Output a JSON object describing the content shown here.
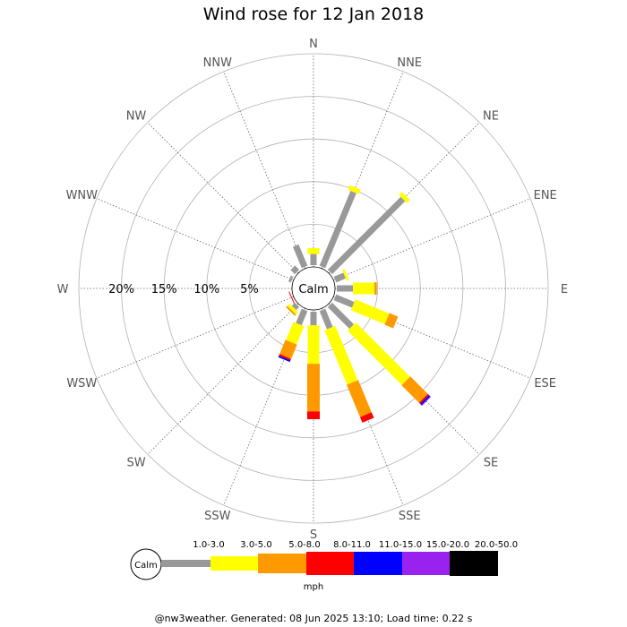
{
  "chart_data": {
    "type": "wind-rose",
    "title": "Wind rose for 12 Jan 2018",
    "directions": [
      "N",
      "NNE",
      "NE",
      "ENE",
      "E",
      "ESE",
      "SE",
      "SSE",
      "S",
      "SSW",
      "SW",
      "WSW",
      "W",
      "WNW",
      "NW",
      "NNW"
    ],
    "radial_ticks": [
      "5%",
      "10%",
      "15%",
      "20%"
    ],
    "radial_max": 25,
    "calm_label": "Calm",
    "units": "mph",
    "speed_bins": [
      {
        "label": "1.0-3.0",
        "color": "#999999"
      },
      {
        "label": "3.0-5.0",
        "color": "#ffff00"
      },
      {
        "label": "5.0-8.0",
        "color": "#ff9900"
      },
      {
        "label": "8.0-11.0",
        "color": "#ff0000"
      },
      {
        "label": "11.0-15.0",
        "color": "#0000ff"
      },
      {
        "label": "15.0-20.0",
        "color": "#9922ee"
      },
      {
        "label": "20.0-50.0",
        "color": "#000000"
      }
    ],
    "values": {
      "N": [
        1.3,
        0.7,
        0,
        0,
        0,
        0,
        0
      ],
      "NNE": [
        9.5,
        0.6,
        0,
        0,
        0,
        0,
        0
      ],
      "NE": [
        12.1,
        0.5,
        0,
        0,
        0,
        0,
        0
      ],
      "ENE": [
        1.2,
        0.3,
        0,
        0,
        0,
        0,
        0
      ],
      "E": [
        1.9,
        2.5,
        0.3,
        0,
        0,
        0,
        0
      ],
      "ESE": [
        2.3,
        4.3,
        1.1,
        0,
        0,
        0,
        0
      ],
      "SE": [
        3.6,
        9.0,
        2.9,
        0.2,
        0.2,
        0.1,
        0
      ],
      "SSE": [
        2.3,
        6.9,
        4.1,
        0.7,
        0,
        0,
        0
      ],
      "S": [
        1.6,
        4.5,
        5.6,
        0.9,
        0,
        0,
        0
      ],
      "SSW": [
        1.8,
        2.3,
        1.8,
        0.2,
        0.2,
        0,
        0
      ],
      "SW": [
        0.5,
        0.4,
        0.2,
        0,
        0,
        0,
        0
      ],
      "WSW": [
        0,
        0,
        0,
        0.1,
        0,
        0,
        0
      ],
      "W": [
        0,
        0,
        0,
        0,
        0,
        0,
        0
      ],
      "WNW": [
        0.3,
        0,
        0,
        0,
        0,
        0,
        0
      ],
      "NW": [
        0.7,
        0,
        0,
        0,
        0,
        0,
        0
      ],
      "NNW": [
        2.7,
        0,
        0,
        0,
        0,
        0,
        0
      ]
    }
  },
  "footer": {
    "text": "@nw3weather. Generated: 08 Jun 2025 13:10; Load time: 0.22 s"
  }
}
